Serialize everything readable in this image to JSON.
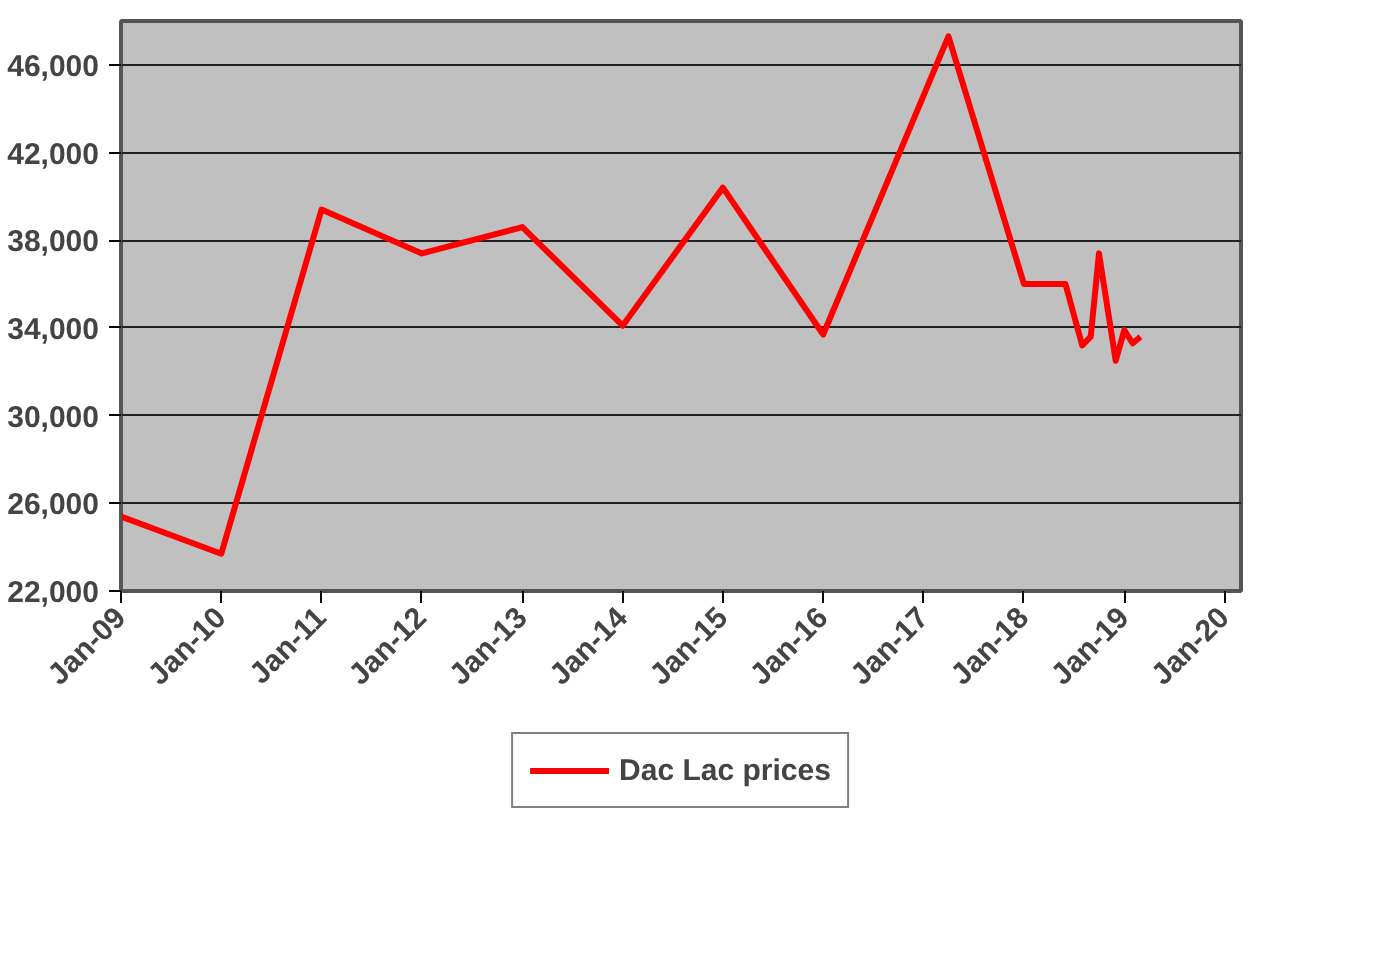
{
  "chart_data": {
    "type": "line",
    "x": [
      "2009-01",
      "2010-01",
      "2011-01",
      "2012-01",
      "2013-01",
      "2014-01",
      "2015-01",
      "2016-01",
      "2017-04",
      "2018-01",
      "2018-06",
      "2018-08",
      "2018-09",
      "2018-10",
      "2018-12",
      "2019-01",
      "2019-02",
      "2019-03"
    ],
    "series": [
      {
        "name": "Dac Lac prices",
        "color": "#ff0000",
        "values": [
          25400,
          23700,
          39400,
          37400,
          38600,
          34100,
          40400,
          33700,
          47300,
          36000,
          36000,
          33200,
          33600,
          37400,
          32500,
          33900,
          33300,
          33600
        ]
      }
    ],
    "xlim": [
      "2009-01",
      "2020-03"
    ],
    "xticks": [
      {
        "value": "2009-01",
        "label": "Jan-09"
      },
      {
        "value": "2010-01",
        "label": "Jan-10"
      },
      {
        "value": "2011-01",
        "label": "Jan-11"
      },
      {
        "value": "2012-01",
        "label": "Jan-12"
      },
      {
        "value": "2013-01",
        "label": "Jan-13"
      },
      {
        "value": "2014-01",
        "label": "Jan-14"
      },
      {
        "value": "2015-01",
        "label": "Jan-15"
      },
      {
        "value": "2016-01",
        "label": "Jan-16"
      },
      {
        "value": "2017-01",
        "label": "Jan-17"
      },
      {
        "value": "2018-01",
        "label": "Jan-18"
      },
      {
        "value": "2019-01",
        "label": "Jan-19"
      },
      {
        "value": "2020-01",
        "label": "Jan-20"
      }
    ],
    "ylim": [
      22000,
      48000
    ],
    "yticks": [
      {
        "value": 22000,
        "label": "22,000"
      },
      {
        "value": 26000,
        "label": "26,000"
      },
      {
        "value": 30000,
        "label": "30,000"
      },
      {
        "value": 34000,
        "label": "34,000"
      },
      {
        "value": 38000,
        "label": "38,000"
      },
      {
        "value": 42000,
        "label": "42,000"
      },
      {
        "value": 46000,
        "label": "46,000"
      }
    ],
    "grid": "y",
    "legend": "bottom",
    "marker": "none",
    "line_style": "solid"
  }
}
